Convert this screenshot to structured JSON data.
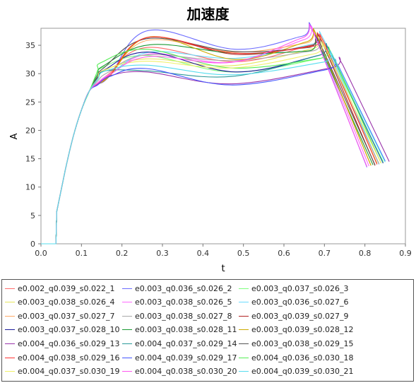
{
  "chart_data": {
    "type": "line",
    "title": "加速度",
    "xlabel": "t",
    "ylabel": "A",
    "xlim": [
      0,
      0.9
    ],
    "ylim": [
      0,
      38
    ],
    "x_ticks": [
      "0.0",
      "0.1",
      "0.2",
      "0.3",
      "0.4",
      "0.5",
      "0.6",
      "0.7",
      "0.8",
      "0.9"
    ],
    "y_ticks": [
      "0",
      "5",
      "10",
      "15",
      "20",
      "25",
      "30",
      "35"
    ],
    "grid": false,
    "legend_position": "bottom",
    "series": [
      {
        "name": "e0.002_q0.039_s0.022_1",
        "color": "#ff6b6b",
        "params": {
          "p1": 29.8,
          "s": 0.175,
          "m1": 34.6,
          "t1": 0.26,
          "m2": 32.1,
          "t2": 0.48,
          "pk": 35.6,
          "tp": 0.695,
          "end": [
            0.835,
            14.0
          ]
        }
      },
      {
        "name": "e0.003_q0.036_s0.026_2",
        "color": "#6b6bff",
        "params": {
          "p1": 29.6,
          "s": 0.18,
          "m1": 37.6,
          "t1": 0.265,
          "m2": 34.3,
          "t2": 0.48,
          "pk": 37.2,
          "tp": 0.675,
          "end": [
            0.805,
            13.5
          ]
        }
      },
      {
        "name": "e0.003_q0.037_s0.026_3",
        "color": "#7fff7f",
        "params": {
          "p1": 31.0,
          "s": 0.16,
          "m1": 33.2,
          "t1": 0.26,
          "m2": 30.3,
          "t2": 0.47,
          "pk": 33.2,
          "tp": 0.715,
          "end": [
            0.845,
            14.5
          ]
        }
      },
      {
        "name": "e0.003_q0.038_s0.026_4",
        "color": "#e6e65c",
        "params": {
          "p1": 30.5,
          "s": 0.165,
          "m1": 32.6,
          "t1": 0.26,
          "m2": 31.4,
          "t2": 0.47,
          "pk": 35.0,
          "tp": 0.7,
          "end": [
            0.83,
            14.2
          ]
        }
      },
      {
        "name": "e0.003_q0.038_s0.026_5",
        "color": "#ff6bff",
        "params": {
          "p1": 29.9,
          "s": 0.18,
          "m1": 33.5,
          "t1": 0.27,
          "m2": 32.0,
          "t2": 0.47,
          "pk": 36.6,
          "tp": 0.68,
          "end": [
            0.81,
            13.7
          ]
        }
      },
      {
        "name": "e0.003_q0.036_s0.027_6",
        "color": "#6bdcff",
        "params": {
          "p1": 29.8,
          "s": 0.18,
          "m1": 33.8,
          "t1": 0.27,
          "m2": 32.7,
          "t2": 0.48,
          "pk": 35.8,
          "tp": 0.7,
          "end": [
            0.835,
            14.0
          ]
        }
      },
      {
        "name": "e0.003_q0.037_s0.027_7",
        "color": "#ffaa66",
        "params": {
          "p1": 29.7,
          "s": 0.18,
          "m1": 35.9,
          "t1": 0.265,
          "m2": 33.8,
          "t2": 0.48,
          "pk": 36.0,
          "tp": 0.685,
          "end": [
            0.815,
            13.8
          ]
        }
      },
      {
        "name": "e0.003_q0.038_s0.027_8",
        "color": "#aaaaaa",
        "params": {
          "p1": 30.2,
          "s": 0.175,
          "m1": 33.3,
          "t1": 0.26,
          "m2": 32.3,
          "t2": 0.47,
          "pk": 34.6,
          "tp": 0.7,
          "end": [
            0.835,
            14.1
          ]
        }
      },
      {
        "name": "e0.003_q0.039_s0.027_9",
        "color": "#b22222",
        "params": {
          "p1": 29.6,
          "s": 0.18,
          "m1": 36.4,
          "t1": 0.265,
          "m2": 33.4,
          "t2": 0.48,
          "pk": 35.5,
          "tp": 0.695,
          "end": [
            0.825,
            13.8
          ]
        }
      },
      {
        "name": "e0.003_q0.037_s0.028_10",
        "color": "#1a1a99",
        "params": {
          "p1": 30.8,
          "s": 0.17,
          "m1": 33.8,
          "t1": 0.265,
          "m2": 30.3,
          "t2": 0.48,
          "pk": 33.8,
          "tp": 0.715,
          "end": [
            0.845,
            14.2
          ]
        }
      },
      {
        "name": "e0.003_q0.038_s0.028_11",
        "color": "#1a9933",
        "params": {
          "p1": 31.4,
          "s": 0.165,
          "m1": 35.1,
          "t1": 0.27,
          "m2": 33.6,
          "t2": 0.48,
          "pk": 34.6,
          "tp": 0.69,
          "end": [
            0.82,
            13.9
          ]
        }
      },
      {
        "name": "e0.003_q0.039_s0.028_12",
        "color": "#ccaa00",
        "params": {
          "p1": 29.6,
          "s": 0.18,
          "m1": 36.5,
          "t1": 0.27,
          "m2": 32.5,
          "t2": 0.48,
          "pk": 36.2,
          "tp": 0.685,
          "end": [
            0.815,
            13.8
          ]
        }
      },
      {
        "name": "e0.004_q0.036_s0.029_13",
        "color": "#9933aa",
        "params": {
          "p1": 29.6,
          "s": 0.18,
          "m1": 30.3,
          "t1": 0.26,
          "m2": 28.2,
          "t2": 0.47,
          "pk": 31.6,
          "tp": 0.745,
          "end": [
            0.86,
            14.5
          ]
        }
      },
      {
        "name": "e0.004_q0.037_s0.029_14",
        "color": "#2a9999",
        "params": {
          "p1": 30.5,
          "s": 0.17,
          "m1": 30.5,
          "t1": 0.26,
          "m2": 29.5,
          "t2": 0.47,
          "pk": 33.8,
          "tp": 0.715,
          "end": [
            0.845,
            14.3
          ]
        }
      },
      {
        "name": "e0.003_q0.038_s0.029_15",
        "color": "#555555",
        "params": {
          "p1": 31.0,
          "s": 0.165,
          "m1": 36.2,
          "t1": 0.265,
          "m2": 33.9,
          "t2": 0.48,
          "pk": 35.2,
          "tp": 0.69,
          "end": [
            0.825,
            13.9
          ]
        }
      },
      {
        "name": "e0.004_q0.038_s0.029_16",
        "color": "#ff3333",
        "params": {
          "p1": 29.8,
          "s": 0.18,
          "m1": 36.4,
          "t1": 0.265,
          "m2": 33.6,
          "t2": 0.48,
          "pk": 35.4,
          "tp": 0.7,
          "end": [
            0.83,
            14.0
          ]
        }
      },
      {
        "name": "e0.004_q0.039_s0.029_17",
        "color": "#4455ff",
        "params": {
          "p1": 29.5,
          "s": 0.18,
          "m1": 30.9,
          "t1": 0.26,
          "m2": 28.0,
          "t2": 0.47,
          "pk": 31.3,
          "tp": 0.735,
          "end": [
            0.85,
            14.6
          ]
        }
      },
      {
        "name": "e0.004_q0.036_s0.030_18",
        "color": "#55ee55",
        "params": {
          "p1": 32.0,
          "s": 0.16,
          "m1": 34.3,
          "t1": 0.26,
          "m2": 31.0,
          "t2": 0.47,
          "pk": 33.3,
          "tp": 0.72,
          "end": [
            0.84,
            14.2
          ]
        }
      },
      {
        "name": "e0.004_q0.037_s0.030_19",
        "color": "#f0f066",
        "params": {
          "p1": 30.6,
          "s": 0.165,
          "m1": 32.2,
          "t1": 0.26,
          "m2": 31.0,
          "t2": 0.47,
          "pk": 34.1,
          "tp": 0.705,
          "end": [
            0.84,
            14.2
          ]
        }
      },
      {
        "name": "e0.004_q0.038_s0.030_20",
        "color": "#ff55ee",
        "params": {
          "p1": 29.8,
          "s": 0.18,
          "m1": 33.0,
          "t1": 0.265,
          "m2": 32.0,
          "t2": 0.47,
          "pk": 36.9,
          "tp": 0.675,
          "end": [
            0.805,
            13.6
          ]
        }
      },
      {
        "name": "e0.004_q0.039_s0.030_21",
        "color": "#55ddee",
        "params": {
          "p1": 30.5,
          "s": 0.17,
          "m1": 31.5,
          "t1": 0.26,
          "m2": 29.8,
          "t2": 0.47,
          "pk": 32.6,
          "tp": 0.725,
          "end": [
            0.85,
            14.4
          ]
        }
      }
    ]
  }
}
